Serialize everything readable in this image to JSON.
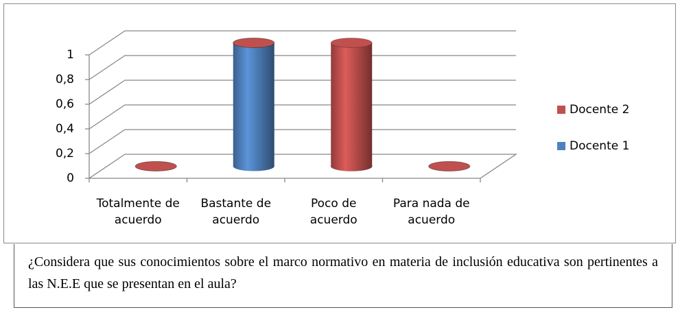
{
  "chart_data": {
    "type": "bar3d_stacked",
    "categories": [
      "Totalmente de acuerdo",
      "Bastante de acuerdo",
      "Poco de acuerdo",
      "Para nada de acuerdo"
    ],
    "series": [
      {
        "name": "Docente 1",
        "color": "#4f81bd",
        "values": [
          0,
          1,
          0,
          0
        ]
      },
      {
        "name": "Docente 2",
        "color": "#c0504d",
        "values": [
          0,
          0,
          1,
          0
        ]
      }
    ],
    "ylim": [
      0,
      1
    ],
    "yticks": [
      0,
      {
        "value": 0.2,
        "label": "0,2"
      },
      {
        "value": 0.4,
        "label": "0,4"
      },
      {
        "value": 0.6,
        "label": "0,6"
      },
      {
        "value": 0.8,
        "label": "0,8"
      },
      1
    ],
    "grid": true,
    "legend": "right",
    "caption": "¿Considera que sus conocimientos sobre el marco normativo en materia de inclusión educativa son  pertinentes a las N.E.E que se presentan en el aula?"
  }
}
